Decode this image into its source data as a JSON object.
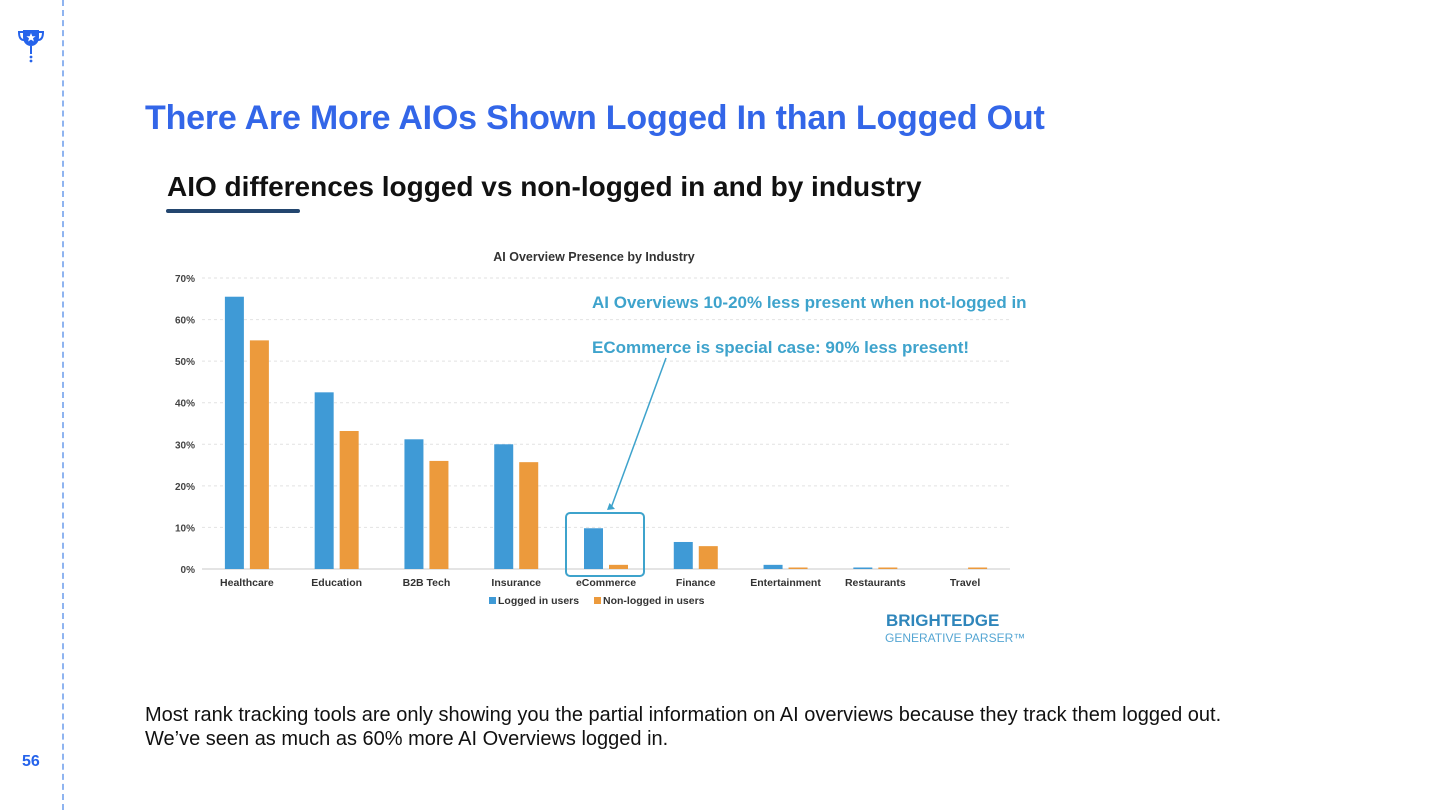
{
  "slide": {
    "title": "There Are More AIOs Shown Logged In than Logged Out",
    "page_number": "56",
    "body_lines": [
      "Most rank tracking tools are only showing you the partial information on AI overviews because they track them logged out.",
      "We’ve seen as much as 60% more AI Overviews logged in."
    ]
  },
  "image": {
    "heading": "AIO differences logged vs non-logged in and by industry",
    "brand_name": "BRIGHTEDGE",
    "brand_sub": "GENERATIVE PARSER™",
    "annotation_line1": "AI Overviews 10-20% less present when not-logged in",
    "annotation_line2": "ECommerce is special case: 90% less present!"
  },
  "colors": {
    "accent": "#3366e8",
    "logged_in": "#3f9ad6",
    "non_logged_in": "#ec9a3c",
    "annotation": "#3ea3cc"
  },
  "chart_data": {
    "type": "bar",
    "title": "AI Overview Presence by Industry",
    "categories": [
      "Healthcare",
      "Education",
      "B2B Tech",
      "Insurance",
      "eCommerce",
      "Finance",
      "Entertainment",
      "Restaurants",
      "Travel"
    ],
    "series": [
      {
        "name": "Logged in users",
        "values": [
          65.5,
          42.5,
          31.2,
          30.0,
          9.8,
          6.5,
          1.0,
          0.3,
          0.0
        ]
      },
      {
        "name": "Non-logged in users",
        "values": [
          55.0,
          33.2,
          26.0,
          25.7,
          1.0,
          5.5,
          0.3,
          0.3,
          0.3
        ]
      }
    ],
    "yticks": [
      "0%",
      "10%",
      "20%",
      "30%",
      "40%",
      "50%",
      "60%",
      "70%"
    ],
    "ylim": [
      0,
      70
    ],
    "xlabel": "",
    "ylabel": "",
    "grid": true,
    "legend": "bottom-center",
    "highlight_category": "eCommerce"
  }
}
